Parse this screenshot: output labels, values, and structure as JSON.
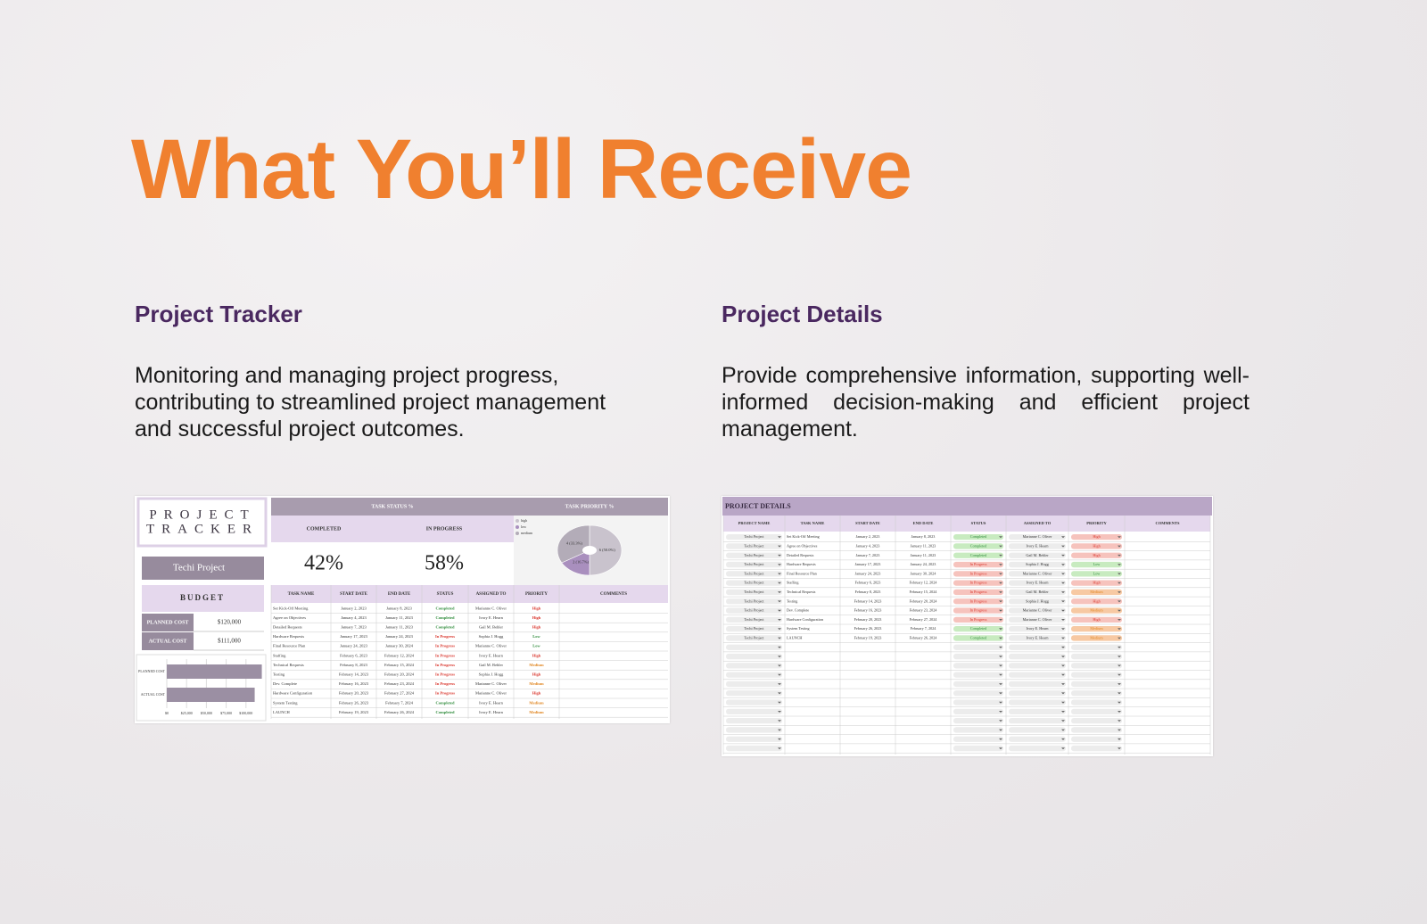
{
  "header": {
    "title": "What You’ll Receive"
  },
  "sections": [
    {
      "title": "Project Tracker",
      "description": "Monitoring and managing project progress, contributing to streamlined project management and successful project outcomes."
    },
    {
      "title": "Project Details",
      "description": "Provide comprehensive information, supporting well-informed decision-making and efficient project management."
    }
  ],
  "styles": {
    "Completed": {
      "text": "#2e8b3a",
      "fill": "#c8ebc0"
    },
    "In Progress": {
      "text": "#d9342b",
      "fill": "#f6c3bd"
    },
    "High": {
      "text": "#d9342b",
      "fill": "#f6c3bd"
    },
    "Low": {
      "text": "#2e8b3a",
      "fill": "#c8ebc0"
    },
    "Medium": {
      "text": "#e0851f",
      "fill": "#f7c9a3"
    }
  },
  "tracker": {
    "logo": [
      "PROJECT",
      "TRACKER"
    ],
    "project": "Techi Project",
    "budget": {
      "title": "BUDGET",
      "planned_label": "PLANNED COST",
      "planned": "$120,000",
      "actual_label": "ACTUAL COST",
      "actual": "$111,000"
    },
    "budget_chart": {
      "type": "bar",
      "orientation": "horizontal",
      "categories": [
        "PLANNED COST",
        "ACTUAL COST"
      ],
      "values": [
        120000,
        111000
      ],
      "color": "#9b8fa3",
      "xlim": [
        0,
        125000
      ],
      "xticks": [
        {
          "value": 0,
          "label": "$0"
        },
        {
          "value": 25000,
          "label": "$25,000"
        },
        {
          "value": 50000,
          "label": "$50,000"
        },
        {
          "value": 75000,
          "label": "$75,000"
        },
        {
          "value": 100000,
          "label": "$100,000"
        }
      ],
      "grid": true
    },
    "status": {
      "title": "TASK STATUS %",
      "labels": [
        "COMPLETED",
        "IN PROGRESS"
      ],
      "values": [
        "42%",
        "58%"
      ]
    },
    "priority_chart": {
      "type": "pie",
      "title": "TASK PRIORITY %",
      "categories": [
        "high",
        "low",
        "medium"
      ],
      "values": [
        6,
        2,
        4
      ],
      "value_labels": [
        "6 (50.0%)",
        "2 (16.7%)",
        "4 (33.3%)"
      ],
      "colors": [
        "#c9c3cd",
        "#a98fbe",
        "#b3acb8"
      ]
    },
    "task_table": {
      "columns": [
        "TASK NAME",
        "START DATE",
        "END DATE",
        "STATUS",
        "ASSIGNED TO",
        "PRIORITY",
        "COMMENTS"
      ],
      "rows": [
        [
          "Set Kick-Off Meeting",
          "January 2, 2023",
          "January 8, 2023",
          "Completed",
          "Marianne C. Oliver",
          "High"
        ],
        [
          "Agree on Objectives",
          "January 4, 2023",
          "January 11, 2023",
          "Completed",
          "Ivory E. Hearn",
          "High"
        ],
        [
          "Detailed Requests",
          "January 7, 2023",
          "January 11, 2023",
          "Completed",
          "Gail M. Behler",
          "High"
        ],
        [
          "Hardware Requests",
          "January 17, 2023",
          "January 24, 2023",
          "In Progress",
          "Sophia J. Hogg",
          "Low"
        ],
        [
          "Final Resource Plan",
          "January 24, 2023",
          "January 30, 2024",
          "In Progress",
          "Marianne C. Oliver",
          "Low"
        ],
        [
          "Staffing",
          "February 6, 2023",
          "February 12, 2024",
          "In Progress",
          "Ivory E. Hearn",
          "High"
        ],
        [
          "Technical Requests",
          "February 8, 2023",
          "February 15, 2024",
          "In Progress",
          "Gail M. Behler",
          "Medium"
        ],
        [
          "Testing",
          "February 14, 2023",
          "February 20, 2024",
          "In Progress",
          "Sophia J. Hogg",
          "High"
        ],
        [
          "Dev. Complete",
          "February 16, 2023",
          "February 23, 2024",
          "In Progress",
          "Marianne C. Oliver",
          "Medium"
        ],
        [
          "Hardware Configuration",
          "February 20, 2023",
          "February 27, 2024",
          "In Progress",
          "Marianne C. Oliver",
          "High"
        ],
        [
          "System Testing",
          "February 26, 2023",
          "February 7, 2024",
          "Completed",
          "Ivory E. Hearn",
          "Medium"
        ],
        [
          "LAUNCH",
          "February 19, 2023",
          "February 26, 2024",
          "Completed",
          "Ivory E. Hearn",
          "Medium"
        ]
      ]
    }
  },
  "details": {
    "title": "PROJECT DETAILS",
    "columns": [
      "PROJECT NAME",
      "TASK NAME",
      "START DATE",
      "END DATE",
      "STATUS",
      "ASSIGNED TO",
      "PRIORITY",
      "COMMENTS"
    ],
    "rows": [
      [
        "Techi Project",
        "Set Kick-Off Meeting",
        "January 2, 2023",
        "January 8, 2023",
        "Completed",
        "Marianne C. Oliver",
        "High"
      ],
      [
        "Techi Project",
        "Agree on Objectives",
        "January 4, 2023",
        "January 11, 2023",
        "Completed",
        "Ivory E. Hearn",
        "High"
      ],
      [
        "Techi Project",
        "Detailed Requests",
        "January 7, 2023",
        "January 11, 2023",
        "Completed",
        "Gail M. Behler",
        "High"
      ],
      [
        "Techi Project",
        "Hardware Requests",
        "January 17, 2023",
        "January 24, 2023",
        "In Progress",
        "Sophia J. Hogg",
        "Low"
      ],
      [
        "Techi Project",
        "Final Resource Plan",
        "January 24, 2023",
        "January 30, 2024",
        "In Progress",
        "Marianne C. Oliver",
        "Low"
      ],
      [
        "Techi Project",
        "Staffing",
        "February 6, 2023",
        "February 12, 2024",
        "In Progress",
        "Ivory E. Hearn",
        "High"
      ],
      [
        "Techi Project",
        "Technical Requests",
        "February 8, 2023",
        "February 15, 2024",
        "In Progress",
        "Gail M. Behler",
        "Medium"
      ],
      [
        "Techi Project",
        "Testing",
        "February 14, 2023",
        "February 20, 2024",
        "In Progress",
        "Sophia J. Hogg",
        "High"
      ],
      [
        "Techi Project",
        "Dev. Complete",
        "February 16, 2023",
        "February 23, 2024",
        "In Progress",
        "Marianne C. Oliver",
        "Medium"
      ],
      [
        "Techi Project",
        "Hardware Configuration",
        "February 20, 2023",
        "February 27, 2024",
        "In Progress",
        "Marianne C. Oliver",
        "High"
      ],
      [
        "Techi Project",
        "System Testing",
        "February 26, 2023",
        "February 7, 2024",
        "Completed",
        "Ivory E. Hearn",
        "Medium"
      ],
      [
        "Techi Project",
        "LAUNCH",
        "February 19, 2023",
        "February 26, 2024",
        "Completed",
        "Ivory E. Hearn",
        "Medium"
      ]
    ]
  }
}
